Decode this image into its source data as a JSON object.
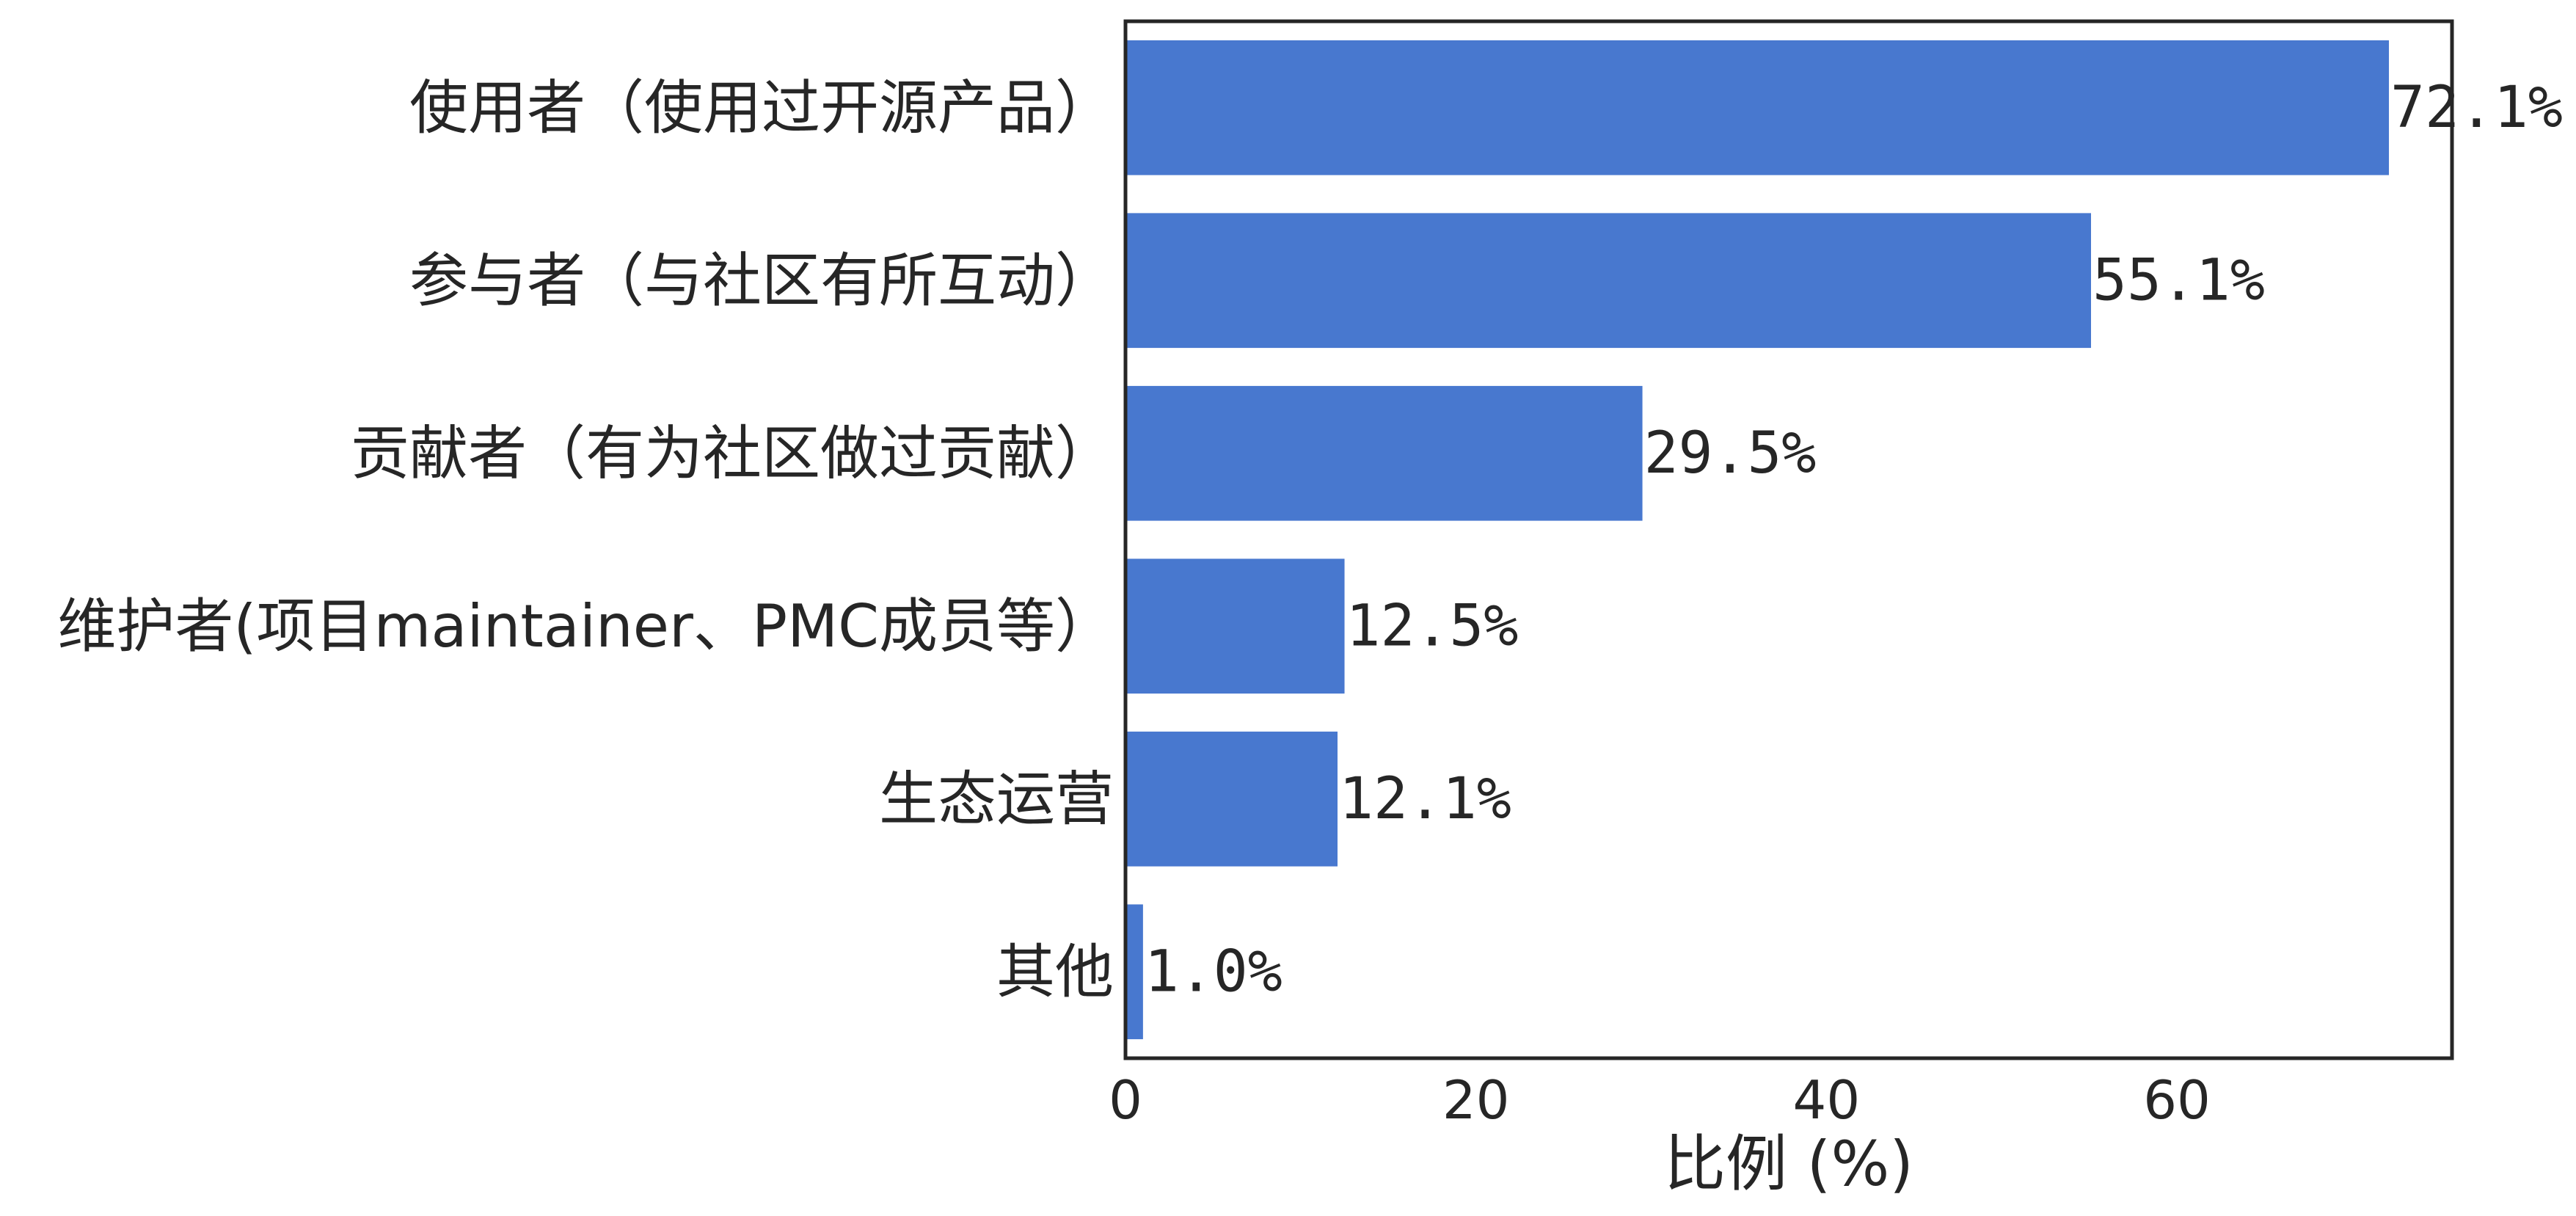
{
  "chart_data": {
    "type": "bar",
    "orientation": "horizontal",
    "categories": [
      "使用者（使用过开源产品）",
      "参与者（与社区有所互动）",
      "贡献者（有为社区做过贡献）",
      "维护者(项目maintainer、PMC成员等）",
      "生态运营",
      "其他"
    ],
    "values": [
      72.1,
      55.1,
      29.5,
      12.5,
      12.1,
      1.0
    ],
    "value_labels": [
      "72.1%",
      "55.1%",
      "29.5%",
      "12.5%",
      "12.1%",
      "1.0%"
    ],
    "xlabel": "比例 (%)",
    "ylabel": "",
    "xlim": [
      0,
      75.7
    ],
    "xticks": [
      0,
      20,
      40,
      60
    ],
    "xtick_labels": [
      "0",
      "20",
      "40",
      "60"
    ],
    "grid": false,
    "bar_color": "#4878cf"
  }
}
